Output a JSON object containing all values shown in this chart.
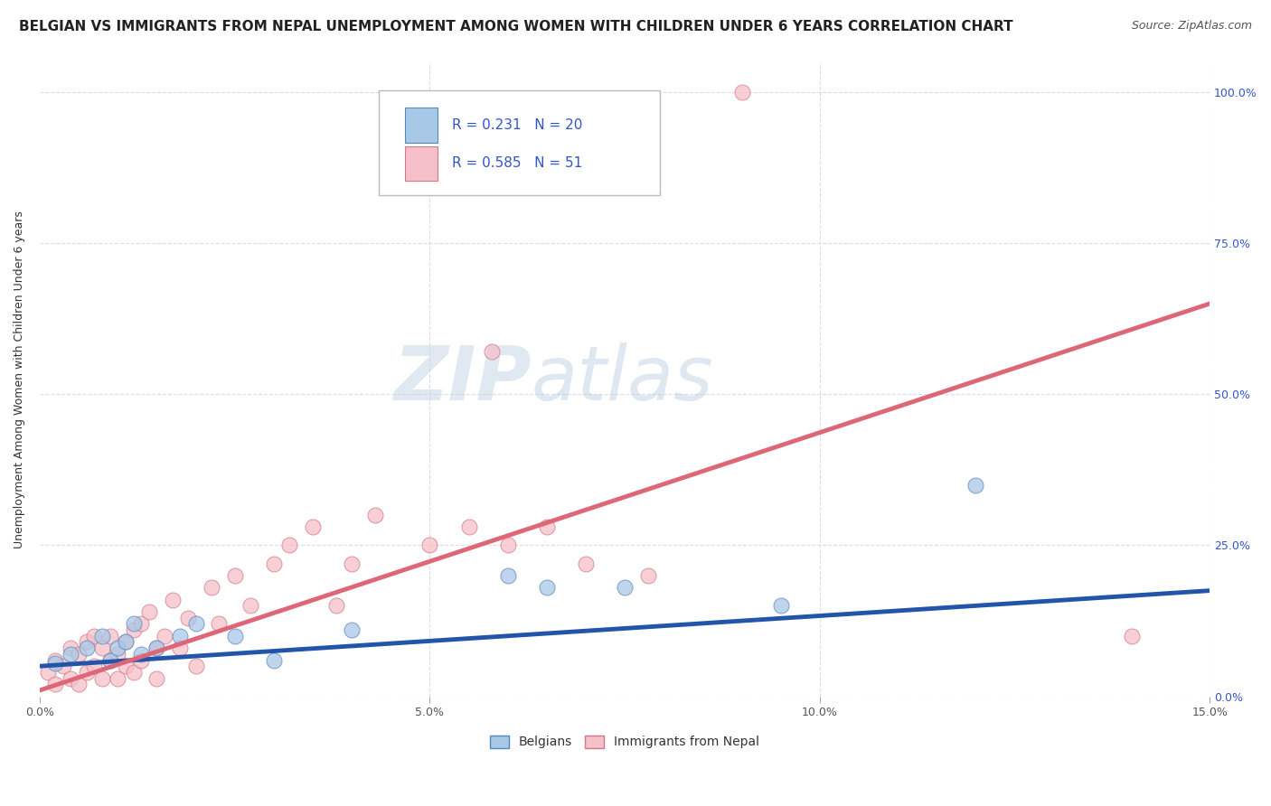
{
  "title": "BELGIAN VS IMMIGRANTS FROM NEPAL UNEMPLOYMENT AMONG WOMEN WITH CHILDREN UNDER 6 YEARS CORRELATION CHART",
  "source": "Source: ZipAtlas.com",
  "ylabel": "Unemployment Among Women with Children Under 6 years",
  "xlim": [
    0.0,
    0.15
  ],
  "ylim": [
    0.0,
    1.05
  ],
  "x_ticks": [
    0.0,
    0.05,
    0.1,
    0.15
  ],
  "x_tick_labels": [
    "0.0%",
    "5.0%",
    "10.0%",
    "15.0%"
  ],
  "y_ticks": [
    0.0,
    0.25,
    0.5,
    0.75,
    1.0
  ],
  "y_tick_labels_right": [
    "0.0%",
    "25.0%",
    "50.0%",
    "75.0%",
    "100.0%"
  ],
  "watermark_zip": "ZIP",
  "watermark_atlas": "atlas",
  "belgians_color": "#a8c8e8",
  "belgians_edge_color": "#5588bb",
  "nepal_color": "#f5c0c8",
  "nepal_edge_color": "#d07888",
  "belgians_line_color": "#2255aa",
  "nepal_line_color": "#dd6677",
  "belgians_R": 0.231,
  "belgians_N": 20,
  "nepal_R": 0.585,
  "nepal_N": 51,
  "legend_label_belgians": "Belgians",
  "legend_label_nepal": "Immigrants from Nepal",
  "legend_R_N_color": "#3355cc",
  "background_color": "#ffffff",
  "grid_color": "#dddddd",
  "belgians_x": [
    0.002,
    0.004,
    0.006,
    0.008,
    0.009,
    0.01,
    0.011,
    0.012,
    0.013,
    0.015,
    0.018,
    0.02,
    0.025,
    0.03,
    0.04,
    0.06,
    0.065,
    0.075,
    0.095,
    0.12
  ],
  "belgians_y": [
    0.055,
    0.07,
    0.08,
    0.1,
    0.06,
    0.08,
    0.09,
    0.12,
    0.07,
    0.08,
    0.1,
    0.12,
    0.1,
    0.06,
    0.11,
    0.2,
    0.18,
    0.18,
    0.15,
    0.35
  ],
  "nepal_x": [
    0.001,
    0.002,
    0.002,
    0.003,
    0.004,
    0.004,
    0.005,
    0.005,
    0.006,
    0.006,
    0.007,
    0.007,
    0.008,
    0.008,
    0.009,
    0.009,
    0.01,
    0.01,
    0.011,
    0.011,
    0.012,
    0.012,
    0.013,
    0.013,
    0.014,
    0.015,
    0.015,
    0.016,
    0.017,
    0.018,
    0.019,
    0.02,
    0.022,
    0.023,
    0.025,
    0.027,
    0.03,
    0.032,
    0.035,
    0.038,
    0.04,
    0.043,
    0.05,
    0.055,
    0.058,
    0.06,
    0.065,
    0.07,
    0.078,
    0.14,
    0.09
  ],
  "nepal_y": [
    0.04,
    0.06,
    0.02,
    0.05,
    0.08,
    0.03,
    0.07,
    0.02,
    0.09,
    0.04,
    0.1,
    0.05,
    0.08,
    0.03,
    0.06,
    0.1,
    0.07,
    0.03,
    0.09,
    0.05,
    0.11,
    0.04,
    0.12,
    0.06,
    0.14,
    0.08,
    0.03,
    0.1,
    0.16,
    0.08,
    0.13,
    0.05,
    0.18,
    0.12,
    0.2,
    0.15,
    0.22,
    0.25,
    0.28,
    0.15,
    0.22,
    0.3,
    0.25,
    0.28,
    0.57,
    0.25,
    0.28,
    0.22,
    0.2,
    0.1,
    1.0
  ],
  "belgians_line_x": [
    0.0,
    0.15
  ],
  "belgians_line_y": [
    0.05,
    0.175
  ],
  "nepal_line_x": [
    0.0,
    0.15
  ],
  "nepal_line_y": [
    0.01,
    0.65
  ],
  "title_fontsize": 11,
  "axis_label_fontsize": 9,
  "tick_fontsize": 9,
  "legend_fontsize": 11,
  "source_fontsize": 9
}
